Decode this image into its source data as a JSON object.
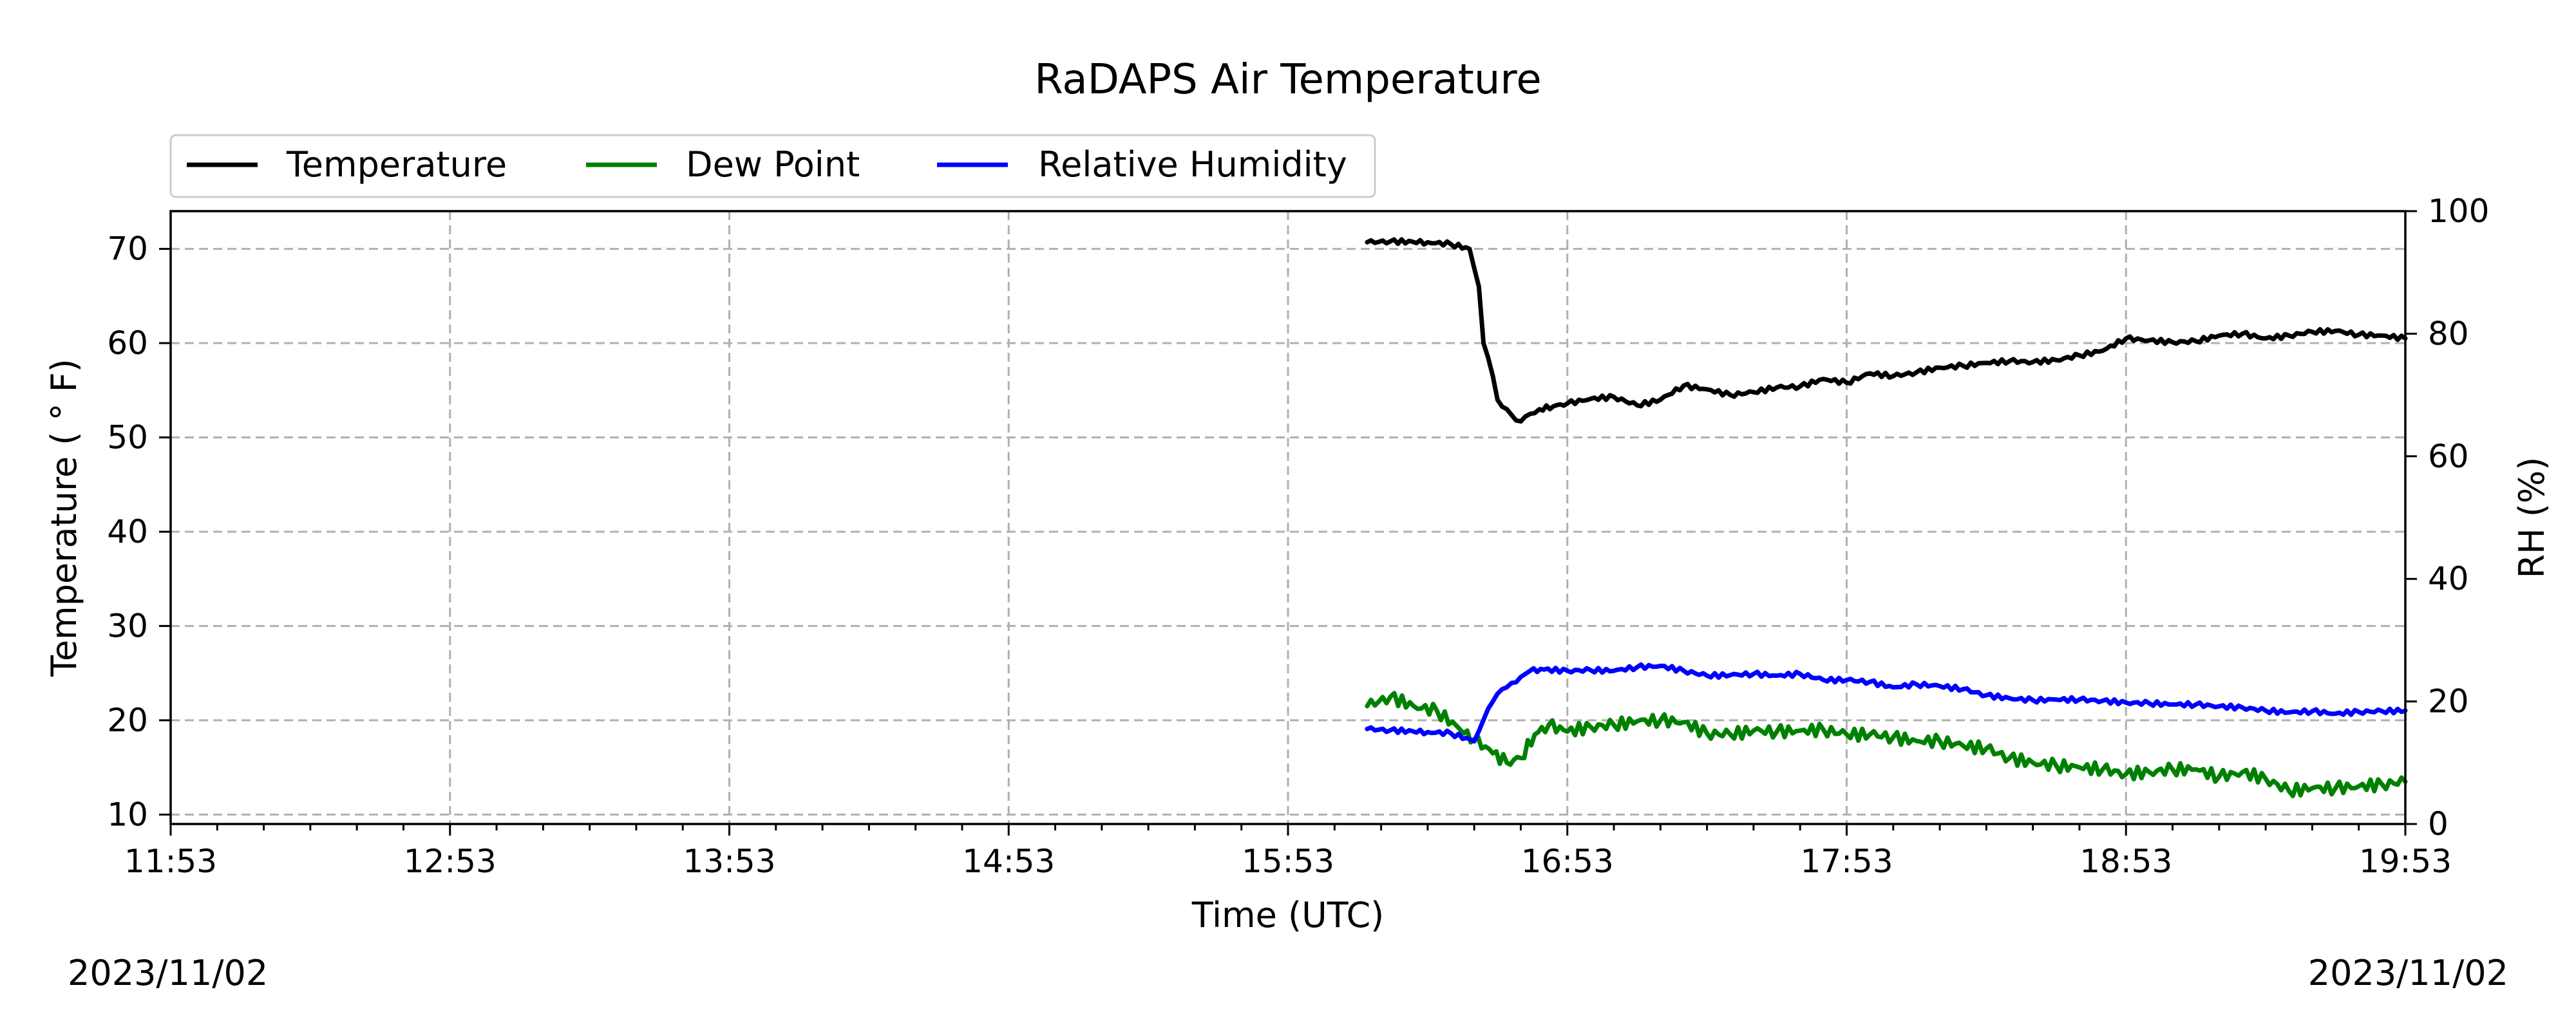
{
  "chart_data": {
    "type": "line",
    "title": "RaDAPS Air Temperature",
    "xlabel": "Time (UTC)",
    "ylabel": "Temperature ($^\\circ$F)",
    "ylabel_display": "Temperature ( ° F)",
    "y2label": "RH (%)",
    "x_ticks": [
      "11:53",
      "12:53",
      "13:53",
      "14:53",
      "15:53",
      "16:53",
      "17:53",
      "18:53",
      "19:53"
    ],
    "x_range_minutes": [
      0,
      480
    ],
    "ylim": [
      9,
      74
    ],
    "y_ticks": [
      10,
      20,
      30,
      40,
      50,
      60,
      70
    ],
    "y2lim": [
      0,
      100
    ],
    "y2_ticks": [
      0,
      20,
      40,
      60,
      80,
      100
    ],
    "grid": true,
    "legend_position": "top-left, above plot",
    "date_left": "2023/11/02",
    "date_right": "2023/11/02",
    "series": [
      {
        "name": "Temperature",
        "color": "#000000",
        "axis": "left",
        "x": [
          257,
          262,
          270,
          275,
          279,
          281,
          282,
          284,
          285,
          287,
          289,
          290,
          292,
          294,
          297,
          300,
          305,
          310,
          315,
          320,
          325,
          330,
          335,
          340,
          345,
          350,
          355,
          360,
          365,
          370,
          375,
          380,
          385,
          390,
          395,
          400,
          405,
          410,
          415,
          420,
          425,
          430,
          435,
          440,
          445,
          450,
          455,
          460,
          465,
          470,
          475,
          480
        ],
        "values": [
          70.7,
          70.8,
          70.7,
          70.5,
          70.0,
          66.0,
          60.0,
          56.5,
          54.0,
          53.0,
          51.8,
          51.7,
          52.5,
          53.0,
          53.3,
          53.6,
          54.1,
          54.3,
          53.4,
          54.0,
          55.5,
          55.1,
          54.5,
          54.8,
          55.3,
          55.4,
          56.2,
          55.8,
          56.8,
          56.5,
          56.9,
          57.4,
          57.6,
          57.9,
          58.1,
          58.0,
          58.2,
          58.7,
          59.2,
          60.5,
          60.3,
          60.1,
          60.2,
          60.8,
          61.0,
          60.5,
          60.8,
          61.2,
          61.3,
          60.9,
          60.8,
          60.5
        ]
      },
      {
        "name": "Dew Point",
        "color": "#008000",
        "axis": "left",
        "x": [
          257,
          262,
          267,
          272,
          277,
          280,
          284,
          287,
          290,
          293,
          296,
          300,
          305,
          310,
          315,
          320,
          325,
          330,
          335,
          340,
          345,
          350,
          355,
          360,
          365,
          370,
          375,
          380,
          385,
          390,
          395,
          400,
          405,
          410,
          415,
          420,
          425,
          430,
          435,
          440,
          445,
          450,
          455,
          460,
          465,
          470,
          475,
          480
        ],
        "values": [
          21.5,
          22.5,
          21.5,
          21.0,
          19.0,
          18.0,
          16.5,
          15.5,
          16.0,
          18.5,
          19.5,
          18.8,
          19.3,
          19.5,
          19.9,
          20.0,
          19.8,
          18.6,
          18.5,
          18.9,
          18.8,
          18.9,
          19.0,
          18.5,
          18.5,
          18.2,
          17.8,
          17.8,
          17.3,
          17.0,
          16.0,
          15.5,
          15.2,
          15.0,
          14.8,
          14.3,
          14.5,
          14.8,
          14.8,
          14.0,
          14.5,
          13.8,
          12.5,
          12.8,
          12.8,
          13.0,
          13.2,
          13.5
        ]
      },
      {
        "name": "Relative Humidity",
        "color": "#0000ff",
        "axis": "right",
        "x": [
          257,
          262,
          270,
          275,
          280,
          282,
          284,
          286,
          288,
          290,
          292,
          295,
          300,
          305,
          310,
          315,
          320,
          325,
          330,
          335,
          340,
          345,
          350,
          355,
          360,
          365,
          370,
          375,
          380,
          385,
          390,
          395,
          400,
          405,
          410,
          415,
          420,
          425,
          430,
          435,
          440,
          445,
          450,
          455,
          460,
          465,
          470,
          475,
          480
        ],
        "values": [
          15.5,
          15.3,
          15.0,
          14.8,
          13.5,
          17.0,
          20.0,
          22.0,
          23.0,
          24.0,
          25.0,
          25.2,
          25.0,
          25.1,
          25.0,
          25.6,
          25.8,
          25.0,
          24.2,
          24.3,
          24.5,
          24.2,
          24.5,
          23.5,
          23.5,
          23.2,
          22.3,
          22.8,
          22.5,
          22.0,
          21.0,
          20.5,
          20.2,
          20.3,
          20.3,
          20.1,
          19.8,
          19.7,
          19.5,
          19.5,
          19.2,
          19.0,
          18.5,
          18.2,
          18.4,
          18.0,
          18.3,
          18.4,
          18.5
        ]
      }
    ]
  }
}
